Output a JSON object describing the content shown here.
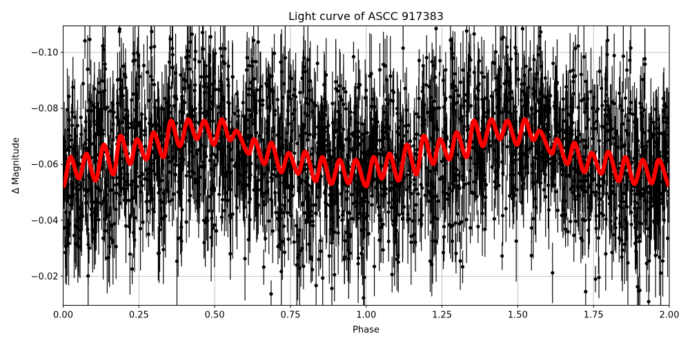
{
  "chart_data": {
    "type": "scatter",
    "title": "Light curve of ASCC 917383",
    "xlabel": "Phase",
    "ylabel": "Δ Magnitude",
    "xlim": [
      0,
      2
    ],
    "ylim": [
      -0.0096,
      -0.1095
    ],
    "y_inverted": true,
    "grid": true,
    "legend": "none",
    "x_ticks": [
      "0.00",
      "0.25",
      "0.50",
      "0.75",
      "1.00",
      "1.25",
      "1.50",
      "1.75",
      "2.00"
    ],
    "x_tick_values": [
      0,
      0.25,
      0.5,
      0.75,
      1.0,
      1.25,
      1.5,
      1.75,
      2.0
    ],
    "y_ticks": [
      "−0.10",
      "−0.08",
      "−0.06",
      "−0.04",
      "−0.02"
    ],
    "y_tick_values": [
      -0.1,
      -0.08,
      -0.06,
      -0.04,
      -0.02
    ],
    "observations": {
      "color": "#000000",
      "marker": "o",
      "errorbars": true,
      "spread_about_model": 0.02
    },
    "model": {
      "color": "#ff0000",
      "style": "line",
      "x": [
        0.002,
        0.024,
        0.052,
        0.077,
        0.107,
        0.134,
        0.166,
        0.189,
        0.221,
        0.243,
        0.275,
        0.298,
        0.332,
        0.355,
        0.385,
        0.412,
        0.441,
        0.466,
        0.498,
        0.523,
        0.55,
        0.573,
        0.612,
        0.63,
        0.664,
        0.687,
        0.719,
        0.744,
        0.776,
        0.799,
        0.833,
        0.855,
        0.885,
        0.912,
        0.942,
        0.965,
        1.0,
        1.024,
        1.052,
        1.077,
        1.107,
        1.134,
        1.166,
        1.189,
        1.221,
        1.243,
        1.275,
        1.298,
        1.332,
        1.355,
        1.385,
        1.412,
        1.441,
        1.466,
        1.498,
        1.523,
        1.55,
        1.573,
        1.612,
        1.63,
        1.664,
        1.687,
        1.719,
        1.744,
        1.776,
        1.799,
        1.833,
        1.855,
        1.885,
        1.912,
        1.942,
        1.965,
        2.0
      ],
      "y": [
        -0.0522,
        -0.0626,
        -0.055,
        -0.0638,
        -0.0542,
        -0.067,
        -0.0564,
        -0.0702,
        -0.0601,
        -0.069,
        -0.0618,
        -0.0714,
        -0.0626,
        -0.0756,
        -0.0665,
        -0.0761,
        -0.069,
        -0.0756,
        -0.067,
        -0.0761,
        -0.0687,
        -0.0719,
        -0.0638,
        -0.069,
        -0.0601,
        -0.0677,
        -0.0572,
        -0.0641,
        -0.0567,
        -0.0645,
        -0.054,
        -0.0626,
        -0.053,
        -0.0616,
        -0.0532,
        -0.0616,
        -0.0522,
        -0.0626,
        -0.055,
        -0.0638,
        -0.0542,
        -0.067,
        -0.0564,
        -0.0702,
        -0.0601,
        -0.069,
        -0.0618,
        -0.0714,
        -0.0626,
        -0.0756,
        -0.0665,
        -0.0761,
        -0.069,
        -0.0756,
        -0.067,
        -0.0761,
        -0.0687,
        -0.0719,
        -0.0638,
        -0.069,
        -0.0601,
        -0.0677,
        -0.0572,
        -0.0641,
        -0.0567,
        -0.0645,
        -0.054,
        -0.0626,
        -0.053,
        -0.0616,
        -0.0532,
        -0.0616,
        -0.0522
      ]
    }
  }
}
